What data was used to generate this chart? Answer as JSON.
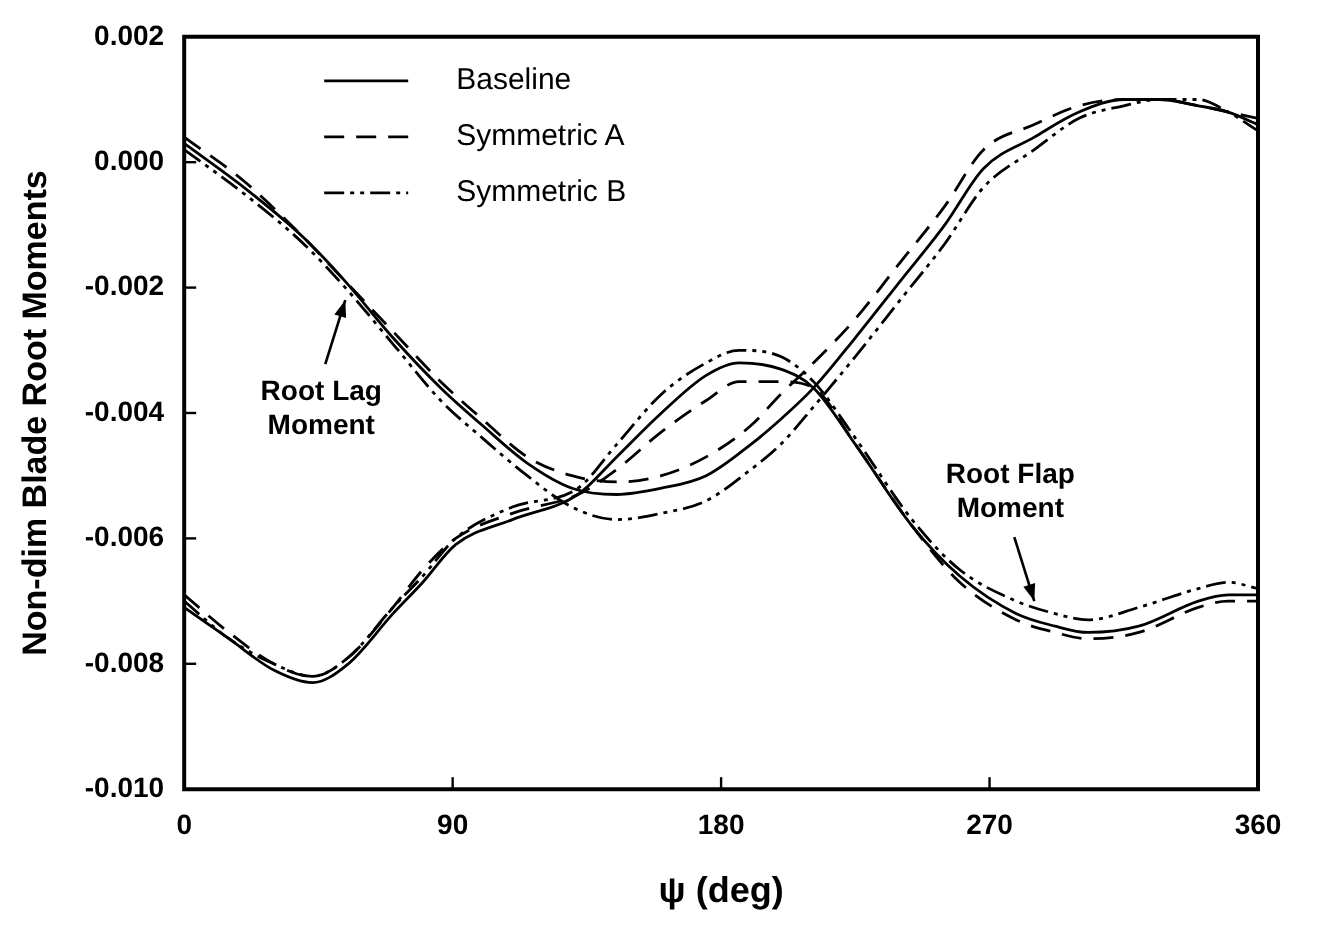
{
  "chart_data": {
    "type": "line",
    "xlabel": "ψ (deg)",
    "ylabel": "Non-dim Blade Root Moments",
    "xlim": [
      0,
      360
    ],
    "xticks": [
      0,
      90,
      180,
      270,
      360
    ],
    "ylim": [
      -0.01,
      0.002
    ],
    "yticks": [
      {
        "value": 0.002,
        "label": "0.002"
      },
      {
        "value": 0,
        "label": "0.000"
      },
      {
        "value": -0.002,
        "label": "-0.002"
      },
      {
        "value": -0.004,
        "label": "-0.004"
      },
      {
        "value": -0.006,
        "label": "-0.006"
      },
      {
        "value": -0.008,
        "label": "-0.008"
      },
      {
        "value": -0.01,
        "label": "-0.010"
      }
    ],
    "grid": false,
    "legend": "top left",
    "marker": "none",
    "series": [
      {
        "name": "Baseline",
        "color": "#000000",
        "line_style": "solid",
        "x": [
          0,
          20,
          40,
          54,
          70,
          86,
          100,
          115,
          130,
          145,
          160,
          175,
          190,
          200,
          211,
          225,
          240,
          255,
          268,
          285,
          300,
          315,
          327,
          340,
          350,
          360
        ],
        "values": [
          0.0003,
          -0.0004,
          -0.0012,
          -0.0019,
          -0.0028,
          -0.0036,
          -0.0042,
          -0.0048,
          -0.0052,
          -0.0053,
          -0.0052,
          -0.005,
          -0.0045,
          -0.0041,
          -0.0036,
          -0.0028,
          -0.0019,
          -0.001,
          -0.0001,
          0.0004,
          0.0008,
          0.001,
          0.001,
          0.0009,
          0.0008,
          0.0006
        ]
      },
      {
        "name": "Symmetric A",
        "color": "#000000",
        "line_style": "dashed",
        "x": [
          0,
          20,
          40,
          54,
          70,
          86,
          100,
          115,
          130,
          145,
          160,
          175,
          190,
          200,
          211,
          225,
          240,
          255,
          268,
          285,
          300,
          315,
          327,
          340,
          350,
          360
        ],
        "values": [
          0.0004,
          -0.0003,
          -0.0012,
          -0.0019,
          -0.0027,
          -0.0035,
          -0.0041,
          -0.0047,
          -0.005,
          -0.0051,
          -0.005,
          -0.0047,
          -0.0042,
          -0.0037,
          -0.0032,
          -0.0025,
          -0.0016,
          -0.0007,
          0.0002,
          0.0006,
          0.0009,
          0.001,
          0.001,
          0.0009,
          0.0008,
          0.0007
        ]
      },
      {
        "name": "Symmetric B",
        "color": "#000000",
        "line_style": "dotted",
        "x": [
          0,
          20,
          40,
          54,
          70,
          86,
          100,
          115,
          130,
          145,
          160,
          175,
          190,
          200,
          211,
          225,
          240,
          255,
          268,
          285,
          300,
          315,
          327,
          340,
          350,
          360
        ],
        "values": [
          0.0002,
          -0.0005,
          -0.0013,
          -0.002,
          -0.0029,
          -0.0038,
          -0.0044,
          -0.005,
          -0.0055,
          -0.0057,
          -0.0056,
          -0.0054,
          -0.0049,
          -0.0045,
          -0.0039,
          -0.0031,
          -0.0022,
          -0.0013,
          -0.0004,
          0.0002,
          0.0007,
          0.0009,
          0.001,
          0.001,
          0.0008,
          0.0005
        ]
      },
      {
        "color": "#000000",
        "line_style": "solid",
        "x": [
          0,
          15,
          30,
          43,
          55,
          70,
          80,
          91,
          110,
          132,
          145,
          160,
          175,
          186,
          200,
          211,
          225,
          244,
          260,
          279,
          292,
          303,
          320,
          340,
          350,
          360
        ],
        "values": [
          -0.0071,
          -0.0076,
          -0.0081,
          -0.0083,
          -0.008,
          -0.0072,
          -0.0067,
          -0.0061,
          -0.0057,
          -0.0053,
          -0.0047,
          -0.004,
          -0.0034,
          -0.0032,
          -0.0033,
          -0.0036,
          -0.0045,
          -0.0058,
          -0.0066,
          -0.0072,
          -0.0074,
          -0.0075,
          -0.0074,
          -0.007,
          -0.0069,
          -0.0069
        ]
      },
      {
        "color": "#000000",
        "line_style": "dashed",
        "x": [
          0,
          15,
          30,
          43,
          55,
          70,
          80,
          91,
          110,
          132,
          145,
          160,
          175,
          186,
          200,
          211,
          225,
          244,
          260,
          279,
          292,
          303,
          320,
          340,
          350,
          360
        ],
        "values": [
          -0.0069,
          -0.0075,
          -0.008,
          -0.0082,
          -0.0079,
          -0.0071,
          -0.0065,
          -0.006,
          -0.0056,
          -0.0053,
          -0.0049,
          -0.0043,
          -0.0038,
          -0.0035,
          -0.0035,
          -0.0036,
          -0.0045,
          -0.0058,
          -0.0067,
          -0.0073,
          -0.0075,
          -0.0076,
          -0.0075,
          -0.0071,
          -0.007,
          -0.007
        ]
      },
      {
        "color": "#000000",
        "line_style": "dotted",
        "x": [
          0,
          15,
          30,
          43,
          55,
          70,
          80,
          91,
          110,
          132,
          145,
          160,
          175,
          186,
          200,
          211,
          225,
          244,
          260,
          279,
          292,
          303,
          320,
          340,
          350,
          360
        ],
        "values": [
          -0.007,
          -0.0076,
          -0.008,
          -0.0082,
          -0.0079,
          -0.0071,
          -0.0066,
          -0.006,
          -0.0055,
          -0.0052,
          -0.0045,
          -0.0037,
          -0.0032,
          -0.003,
          -0.0031,
          -0.0035,
          -0.0044,
          -0.0057,
          -0.0065,
          -0.007,
          -0.0072,
          -0.0073,
          -0.0071,
          -0.0068,
          -0.0067,
          -0.0068
        ]
      }
    ],
    "annotations": [
      {
        "text": "Root Lag\nMoment",
        "x": 54,
        "y": -0.0022
      },
      {
        "text": "Root Flap\nMoment",
        "x": 285,
        "y": -0.007
      }
    ]
  }
}
